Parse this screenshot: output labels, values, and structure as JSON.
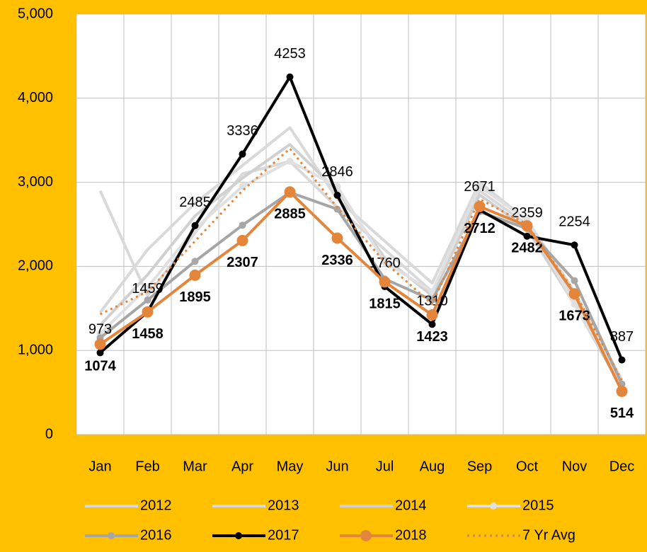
{
  "chart_data": {
    "type": "line",
    "categories": [
      "Jan",
      "Feb",
      "Mar",
      "Apr",
      "May",
      "Jun",
      "Jul",
      "Aug",
      "Sep",
      "Oct",
      "Nov",
      "Dec"
    ],
    "series": [
      {
        "name": "2012",
        "color": "#d9d9d9",
        "values": [
          2900,
          1650,
          2400,
          3100,
          3250,
          2700,
          2200,
          1700,
          2900,
          2500,
          1600,
          600
        ]
      },
      {
        "name": "2013",
        "color": "#d9d9d9",
        "values": [
          1450,
          2200,
          2750,
          3200,
          3650,
          2800,
          2300,
          1800,
          3000,
          2550,
          1700,
          650
        ]
      },
      {
        "name": "2014",
        "color": "#d0d0d0",
        "values": [
          1300,
          1900,
          2600,
          3050,
          3450,
          2900,
          2100,
          1650,
          2850,
          2450,
          1550,
          550
        ]
      },
      {
        "name": "2015",
        "color": "#e0e0e0",
        "marker": true,
        "values": [
          1200,
          1750,
          2450,
          2950,
          3250,
          2950,
          2050,
          1700,
          2950,
          2550,
          1550,
          600
        ]
      },
      {
        "name": "2016",
        "color": "#a6a6a6",
        "marker": true,
        "values": [
          1150,
          1600,
          2060,
          2490,
          2880,
          2680,
          1850,
          1600,
          2650,
          2450,
          1830,
          600
        ]
      },
      {
        "name": "2017",
        "color": "#000000",
        "marker": true,
        "data_labels": "above",
        "values": [
          973,
          1459,
          2485,
          3336,
          4253,
          2846,
          1760,
          1310,
          2671,
          2359,
          2254,
          887
        ]
      },
      {
        "name": "2018",
        "color": "#e3863b",
        "marker": true,
        "data_labels": "below",
        "values": [
          1074,
          1458,
          1895,
          2307,
          2885,
          2336,
          1815,
          1423,
          2712,
          2482,
          1673,
          514
        ]
      },
      {
        "name": "7 Yr Avg",
        "color": "#e3863b",
        "dotted": true,
        "values": [
          1430,
          1700,
          2300,
          2900,
          3400,
          2700,
          2050,
          1550,
          2800,
          2500,
          1700,
          640
        ]
      }
    ],
    "ylim": [
      0,
      5000
    ],
    "yticks": [
      0,
      {
        "value": 1000,
        "label": "1,000"
      },
      {
        "value": 2000,
        "label": "2,000"
      },
      {
        "value": 3000,
        "label": "3,000"
      },
      {
        "value": 4000,
        "label": "4,000"
      },
      {
        "value": 5000,
        "label": "5,000"
      }
    ],
    "grid": true,
    "legend": "bottom"
  }
}
